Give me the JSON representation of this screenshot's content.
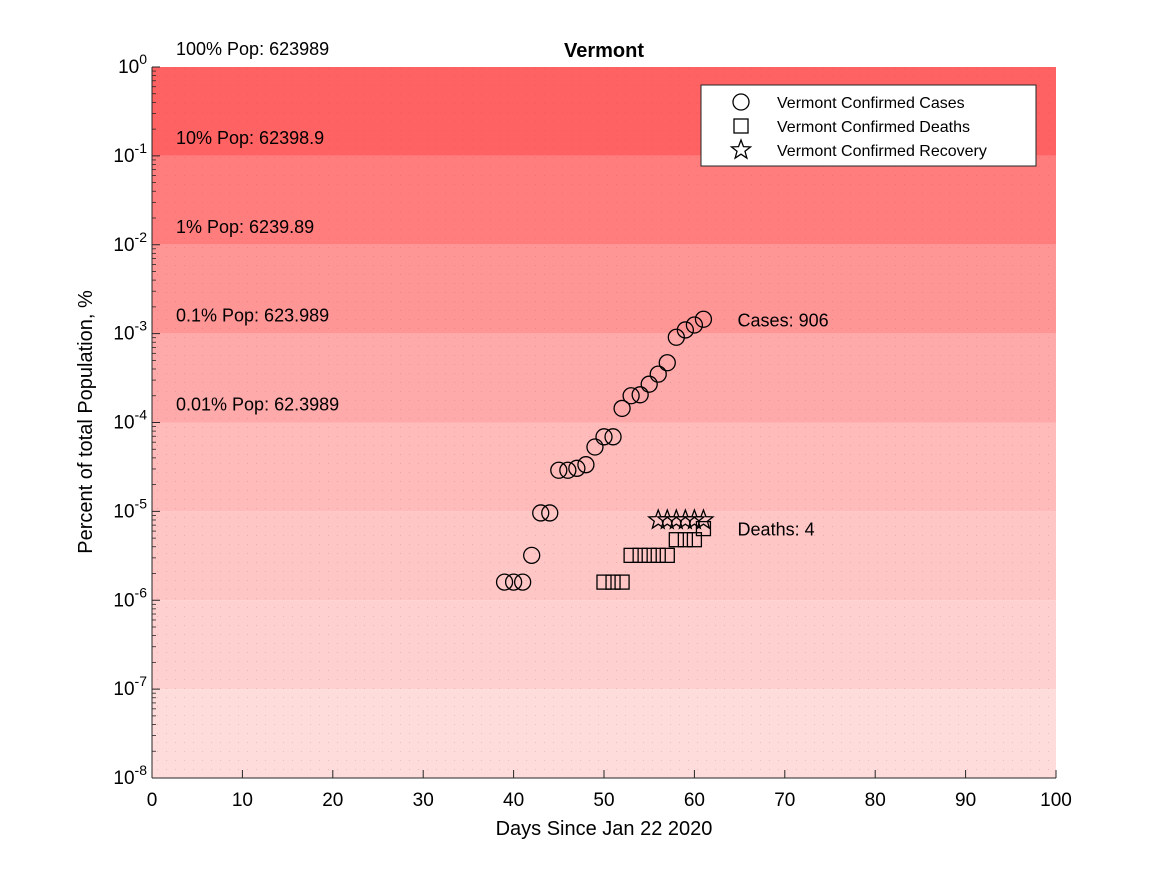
{
  "chart_data": {
    "type": "scatter",
    "title": "Vermont",
    "xlabel": "Days Since Jan 22 2020",
    "ylabel": "Percent of total Population, %",
    "y_scale": "log",
    "xlim": [
      0,
      100
    ],
    "ylim": [
      1e-08,
      1
    ],
    "x_ticks": [
      0,
      10,
      20,
      30,
      40,
      50,
      60,
      70,
      80,
      90,
      100
    ],
    "y_ticks": [
      {
        "value": 1e-08,
        "base": "10",
        "exp": "-8"
      },
      {
        "value": 1e-07,
        "base": "10",
        "exp": "-7"
      },
      {
        "value": 1e-06,
        "base": "10",
        "exp": "-6"
      },
      {
        "value": 1e-05,
        "base": "10",
        "exp": "-5"
      },
      {
        "value": 0.0001,
        "base": "10",
        "exp": "-4"
      },
      {
        "value": 0.001,
        "base": "10",
        "exp": "-3"
      },
      {
        "value": 0.01,
        "base": "10",
        "exp": "-2"
      },
      {
        "value": 0.1,
        "base": "10",
        "exp": "-1"
      },
      {
        "value": 1,
        "base": "10",
        "exp": "0"
      }
    ],
    "grid": false,
    "legend_position": "top-right",
    "background_bands": [
      {
        "from": 0.1,
        "to": 1,
        "color": "#ff6262",
        "label": "100% Pop: 623989",
        "label_y": 1
      },
      {
        "from": 0.01,
        "to": 0.1,
        "color": "#ff7d7d",
        "label": "10% Pop: 62398.9",
        "label_y": 0.1
      },
      {
        "from": 0.001,
        "to": 0.01,
        "color": "#ff9696",
        "label": "1% Pop: 6239.89",
        "label_y": 0.01
      },
      {
        "from": 0.0001,
        "to": 0.001,
        "color": "#ffaaaa",
        "label": "0.1% Pop: 623.989",
        "label_y": 0.001
      },
      {
        "from": 1e-05,
        "to": 0.0001,
        "color": "#ffbaba",
        "label": "0.01% Pop: 62.3989",
        "label_y": 0.0001
      },
      {
        "from": 1e-06,
        "to": 1e-05,
        "color": "#ffc6c6",
        "label": "",
        "label_y": 1e-05
      },
      {
        "from": 1e-07,
        "to": 1e-06,
        "color": "#ffd0d0",
        "label": "",
        "label_y": 1e-06
      },
      {
        "from": 1e-08,
        "to": 1e-07,
        "color": "#ffdcdc",
        "label": "",
        "label_y": 1e-07
      }
    ],
    "series": [
      {
        "name": "Vermont Confirmed Cases",
        "marker": "circle",
        "x": [
          39,
          40,
          41,
          42,
          43,
          44,
          45,
          46,
          47,
          48,
          49,
          50,
          51,
          52,
          53,
          54,
          55,
          56,
          57,
          58,
          59,
          60,
          61
        ],
        "y": [
          1.6e-06,
          1.6e-06,
          1.6e-06,
          3.2e-06,
          9.6e-06,
          9.6e-06,
          2.9e-05,
          2.9e-05,
          3.05e-05,
          3.35e-05,
          5.3e-05,
          6.9e-05,
          6.9e-05,
          0.000144,
          0.0002,
          0.000205,
          0.00027,
          0.00035,
          0.00047,
          0.00091,
          0.0011,
          0.00125,
          0.00145
        ]
      },
      {
        "name": "Vermont Confirmed Deaths",
        "marker": "square",
        "x": [
          50,
          51,
          52,
          53,
          54,
          55,
          56,
          57,
          58,
          59,
          60,
          61
        ],
        "y": [
          1.6e-06,
          1.6e-06,
          1.6e-06,
          3.2e-06,
          3.2e-06,
          3.2e-06,
          3.2e-06,
          3.2e-06,
          4.8e-06,
          4.8e-06,
          4.8e-06,
          6.4e-06
        ]
      },
      {
        "name": "Vermont Confirmed Recovery",
        "marker": "star",
        "x": [
          56,
          57,
          58,
          59,
          60,
          61
        ],
        "y": [
          8e-06,
          8e-06,
          8e-06,
          8e-06,
          8e-06,
          8e-06
        ]
      }
    ],
    "annotations": [
      {
        "text": "Cases: 906",
        "x": 64,
        "y": 0.00145
      },
      {
        "text": "Deaths: 4",
        "x": 64,
        "y": 6.4e-06
      }
    ]
  }
}
